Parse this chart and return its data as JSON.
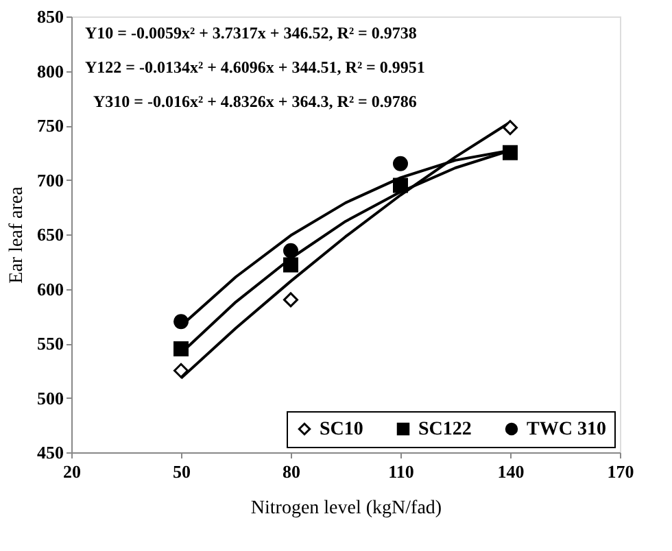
{
  "chart_data": {
    "type": "scatter",
    "xlabel": "Nitrogen level (kgN/fad)",
    "ylabel": "Ear leaf area",
    "xlim": [
      20,
      170
    ],
    "xticks": [
      20,
      50,
      80,
      110,
      140,
      170
    ],
    "ylim": [
      450,
      850
    ],
    "yticks": [
      450,
      500,
      550,
      600,
      650,
      700,
      750,
      800,
      850
    ],
    "grid": false,
    "legend": "bottom right",
    "annotations": [
      "Y10 = -0.0059x² + 3.7317x + 346.52, R² = 0.9738",
      "Y122 = -0.0134x² + 4.6096x + 344.51, R² = 0.9951",
      "Y310 = -0.016x² + 4.8326x + 364.3, R² = 0.9786"
    ],
    "series": [
      {
        "name": "SC10",
        "marker": "diamond",
        "color": "#000000",
        "x": [
          50,
          80,
          140
        ],
        "values": [
          525,
          590,
          748
        ]
      },
      {
        "name": "SC122",
        "marker": "square",
        "color": "#000000",
        "x": [
          50,
          80,
          110,
          140
        ],
        "values": [
          545,
          622,
          695,
          725
        ]
      },
      {
        "name": "TWC 310",
        "marker": "circle",
        "color": "#000000",
        "x": [
          50,
          80,
          110
        ],
        "values": [
          570,
          635,
          715
        ]
      },
      {
        "type": "line",
        "color": "#000000",
        "x": [
          50,
          65,
          80,
          95,
          110,
          125,
          140
        ],
        "values": [
          518,
          564,
          607,
          648,
          686,
          721,
          753
        ]
      },
      {
        "type": "line",
        "color": "#000000",
        "x": [
          50,
          65,
          80,
          95,
          110,
          125,
          140
        ],
        "values": [
          541,
          588,
          628,
          662,
          689,
          711,
          727
        ]
      },
      {
        "type": "line",
        "color": "#000000",
        "x": [
          50,
          65,
          80,
          95,
          110,
          125,
          140
        ],
        "values": [
          566,
          611,
          649,
          679,
          702,
          718,
          727
        ]
      }
    ]
  }
}
